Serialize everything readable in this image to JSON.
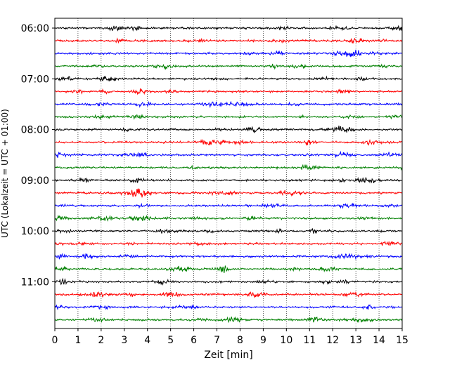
{
  "chart_data": {
    "type": "line",
    "title": "",
    "xlabel": "Zeit  [min]",
    "ylabel": "UTC (Lokalzeit = UTC + 01:00)",
    "xlim": [
      0,
      15
    ],
    "x_ticks": [
      "0",
      "1",
      "2",
      "3",
      "4",
      "5",
      "6",
      "7",
      "8",
      "9",
      "10",
      "11",
      "12",
      "13",
      "14",
      "15"
    ],
    "y_ticks": [
      "06:00",
      "07:00",
      "08:00",
      "09:00",
      "10:00",
      "11:00"
    ],
    "grid": "vertical dotted at each minute",
    "trace_interval_min": 15,
    "color_cycle": [
      "#000000",
      "#ff0000",
      "#0000ff",
      "#008000"
    ],
    "series": [
      {
        "start": "06:00"
      },
      {
        "start": "06:15"
      },
      {
        "start": "06:30"
      },
      {
        "start": "06:45"
      },
      {
        "start": "07:00"
      },
      {
        "start": "07:15"
      },
      {
        "start": "07:30"
      },
      {
        "start": "07:45"
      },
      {
        "start": "08:00"
      },
      {
        "start": "08:15"
      },
      {
        "start": "08:30"
      },
      {
        "start": "08:45"
      },
      {
        "start": "09:00"
      },
      {
        "start": "09:15"
      },
      {
        "start": "09:30"
      },
      {
        "start": "09:45"
      },
      {
        "start": "10:00"
      },
      {
        "start": "10:15"
      },
      {
        "start": "10:30"
      },
      {
        "start": "10:45"
      },
      {
        "start": "11:00"
      },
      {
        "start": "11:15"
      },
      {
        "start": "11:30"
      },
      {
        "start": "11:45"
      }
    ]
  }
}
